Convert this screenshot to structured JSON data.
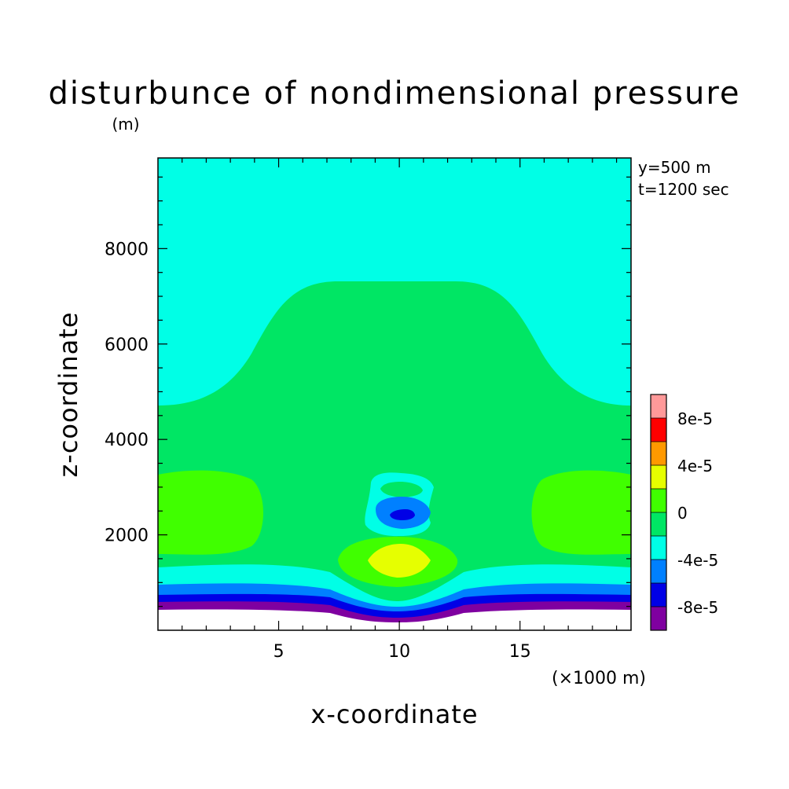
{
  "chart_data": {
    "type": "heatmap",
    "title": "disturbunce of nondimensional pressure",
    "z_unit": "(m)",
    "xlabel": "x-coordinate",
    "ylabel": "z-coordinate",
    "x_multiplier_label": "(×1000 m)",
    "info_lines": [
      "y=500 m",
      "t=1200 sec"
    ],
    "xlim": [
      0,
      19.6
    ],
    "ylim": [
      0,
      9900
    ],
    "x_ticks": [
      "5",
      "10",
      "15"
    ],
    "x_tick_values": [
      5,
      10,
      15
    ],
    "y_ticks": [
      "2000",
      "4000",
      "6000",
      "8000"
    ],
    "y_tick_values": [
      2000,
      4000,
      6000,
      8000
    ],
    "colorbar": {
      "levels": [
        -0.0001,
        -8e-05,
        -6e-05,
        -4e-05,
        -2e-05,
        0,
        2e-05,
        4e-05,
        6e-05,
        8e-05,
        0.0001
      ],
      "colors": [
        "#7f00a0",
        "#0000e6",
        "#0080ff",
        "#00ffe6",
        "#00e664",
        "#40ff00",
        "#e6ff00",
        "#ff9900",
        "#ff0000",
        "#ff9999"
      ],
      "tick_labels": [
        "-8e-5",
        "-4e-5",
        "0",
        "4e-5",
        "8e-5"
      ],
      "tick_values": [
        -8e-05,
        -4e-05,
        0,
        4e-05,
        8e-05
      ]
    },
    "regions": [
      {
        "range": [
          -2e-05,
          0
        ],
        "color": "#00ffe6",
        "description": "upper background"
      },
      {
        "range": [
          0,
          2e-05
        ],
        "color": "#00e664",
        "description": "dome 0-7300 m"
      },
      {
        "range": [
          2e-05,
          4e-05
        ],
        "color": "#40ff00",
        "description": "side lobes near 2600 m"
      },
      {
        "range": [
          4e-05,
          6e-05
        ],
        "color": "#e6ff00",
        "description": "core near x=10, z=1500 m"
      },
      {
        "range": [
          -8e-05,
          -6e-05
        ],
        "color": "#0000e6",
        "description": "core near x=10, z=2500 m"
      },
      {
        "range": [
          -0.0001,
          -8e-05
        ],
        "color": "#7f00a0",
        "description": "near-surface layer"
      }
    ]
  }
}
